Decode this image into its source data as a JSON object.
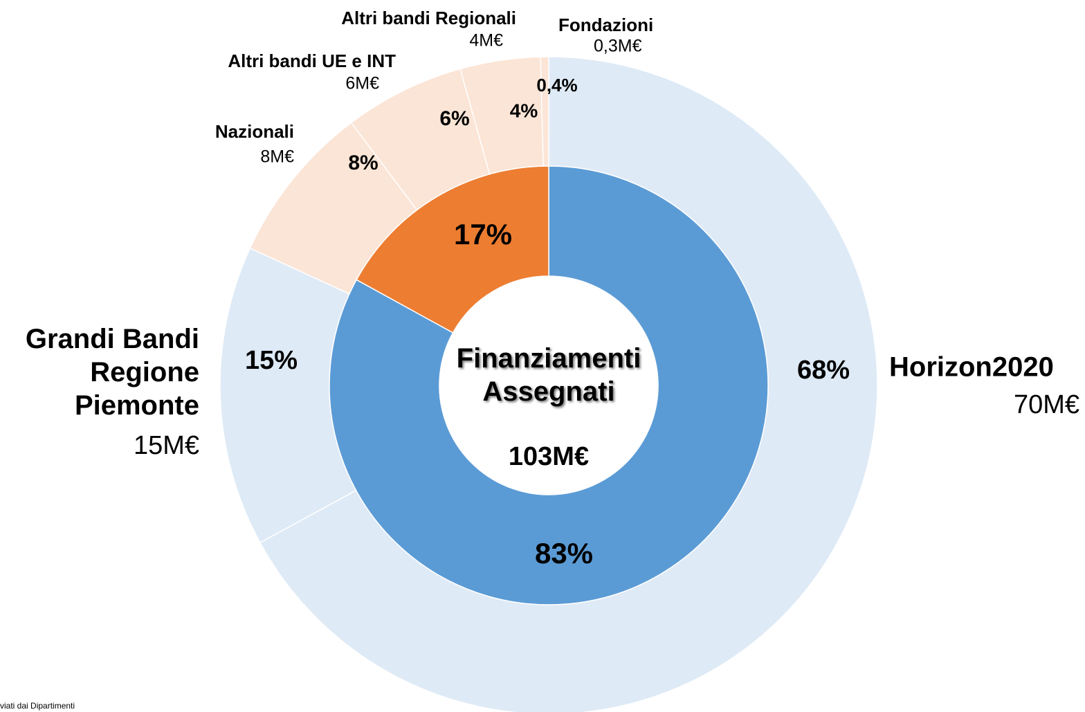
{
  "chart_data": {
    "type": "nested-donut",
    "center_title": "Finanziamenti Assegnati",
    "center_total": "103M€",
    "inner": {
      "values": [
        83,
        17
      ],
      "value_labels": [
        "83%",
        "17%"
      ],
      "colors": [
        "#5b9bd5",
        "#ed7d31"
      ]
    },
    "outer": {
      "names": [
        "Horizon2020",
        "Grandi Bandi Regione Piemonte",
        "Nazionali",
        "Altri bandi UE e INT",
        "Altri  bandi Regionali",
        "Fondazioni"
      ],
      "values": [
        68,
        15,
        8,
        6,
        4,
        0.4
      ],
      "value_labels": [
        "68%",
        "15%",
        "8%",
        "6%",
        "4%",
        "0,4%"
      ],
      "amounts": [
        70,
        15,
        8,
        6,
        4,
        0.3
      ],
      "amount_labels": [
        "70M€",
        "15M€",
        "8M€",
        "6M€",
        "4M€",
        "0,3M€"
      ],
      "colors": [
        "#deeaf6",
        "#deeaf6",
        "#fbe5d6",
        "#fbe5d6",
        "#fbe5d6",
        "#fbe5d6"
      ]
    },
    "footnote": "viati dai Dipartimenti"
  }
}
